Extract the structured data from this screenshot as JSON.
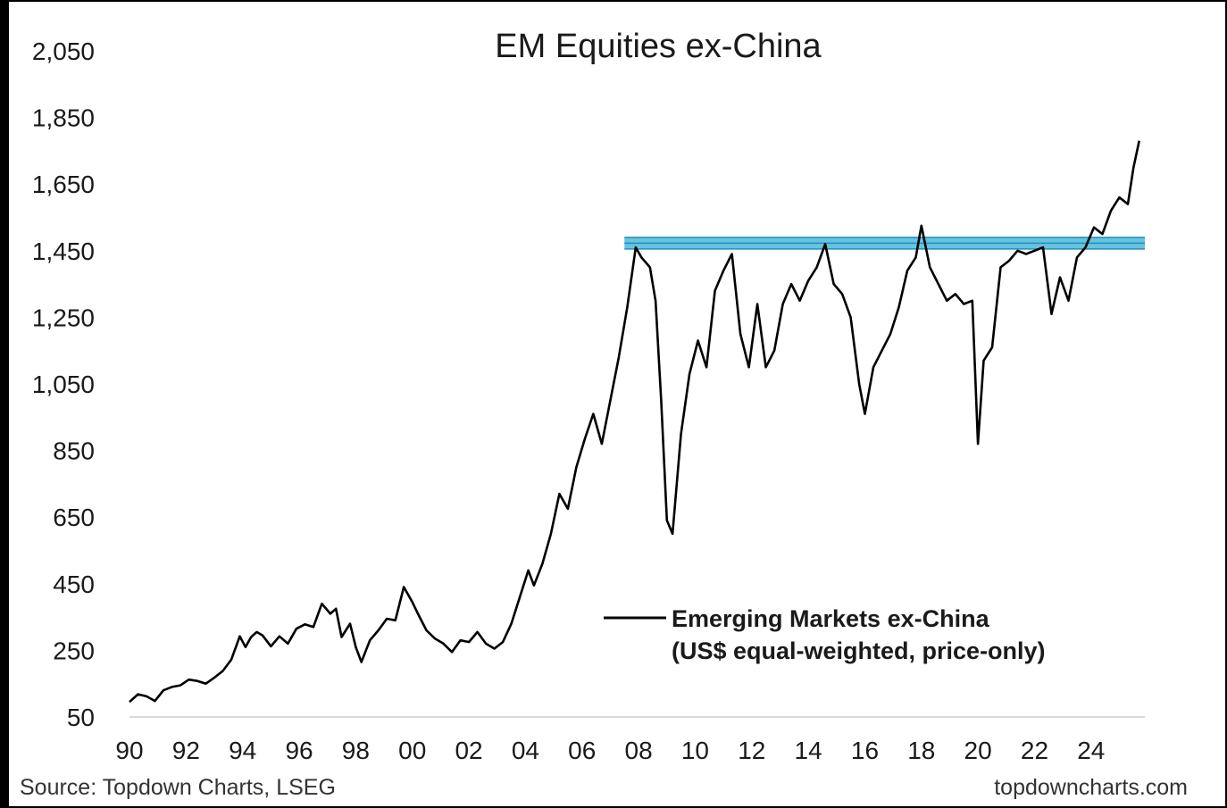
{
  "chart_data": {
    "type": "line",
    "title": "EM Equities ex-China",
    "xlabel": "",
    "ylabel": "",
    "xlim": [
      1990.0,
      2025.9
    ],
    "ylim": [
      50,
      2050
    ],
    "y_ticks": [
      2050,
      1850,
      1650,
      1450,
      1250,
      1050,
      850,
      650,
      450,
      250,
      50
    ],
    "y_tick_labels": [
      "2,050",
      "1,850",
      "1,650",
      "1,450",
      "1,250",
      "1,050",
      "850",
      "650",
      "450",
      "250",
      "50"
    ],
    "x_ticks": [
      1990,
      1992,
      1994,
      1996,
      1998,
      2000,
      2002,
      2004,
      2006,
      2008,
      2010,
      2012,
      2014,
      2016,
      2018,
      2020,
      2022,
      2024
    ],
    "x_tick_labels": [
      "90",
      "92",
      "94",
      "96",
      "98",
      "00",
      "02",
      "04",
      "06",
      "08",
      "10",
      "12",
      "14",
      "16",
      "18",
      "20",
      "22",
      "24"
    ],
    "grid": false,
    "legend": {
      "position": "bottom-right",
      "entries": [
        "Emerging Markets ex-China",
        "(US$ equal-weighted, price-only)"
      ]
    },
    "reference_band": {
      "y_min": 1455,
      "y_max": 1490,
      "x_start": 2007.5,
      "x_end": 2025.9,
      "color": "#4fb8d8"
    },
    "colors": {
      "line": "#000000",
      "band": "#4fb8d8",
      "band_edge": "#1e8fbf"
    },
    "series": [
      {
        "name": "Emerging Markets ex-China",
        "x": [
          1990.0,
          1990.3,
          1990.6,
          1990.9,
          1991.2,
          1991.5,
          1991.8,
          1992.1,
          1992.4,
          1992.7,
          1993.0,
          1993.3,
          1993.6,
          1993.9,
          1994.1,
          1994.3,
          1994.5,
          1994.7,
          1995.0,
          1995.3,
          1995.6,
          1995.9,
          1996.2,
          1996.5,
          1996.8,
          1997.1,
          1997.3,
          1997.5,
          1997.8,
          1998.0,
          1998.2,
          1998.5,
          1998.8,
          1999.1,
          1999.4,
          1999.7,
          2000.0,
          2000.2,
          2000.5,
          2000.8,
          2001.1,
          2001.4,
          2001.7,
          2002.0,
          2002.3,
          2002.6,
          2002.9,
          2003.2,
          2003.5,
          2003.8,
          2004.1,
          2004.3,
          2004.6,
          2004.9,
          2005.2,
          2005.5,
          2005.8,
          2006.1,
          2006.4,
          2006.7,
          2007.0,
          2007.3,
          2007.6,
          2007.9,
          2008.1,
          2008.4,
          2008.6,
          2008.8,
          2009.0,
          2009.2,
          2009.5,
          2009.8,
          2010.1,
          2010.4,
          2010.7,
          2011.0,
          2011.3,
          2011.6,
          2011.9,
          2012.2,
          2012.5,
          2012.8,
          2013.1,
          2013.4,
          2013.7,
          2014.0,
          2014.3,
          2014.6,
          2014.9,
          2015.2,
          2015.5,
          2015.8,
          2016.0,
          2016.3,
          2016.6,
          2016.9,
          2017.2,
          2017.5,
          2017.8,
          2018.0,
          2018.3,
          2018.6,
          2018.9,
          2019.2,
          2019.5,
          2019.8,
          2020.0,
          2020.2,
          2020.5,
          2020.8,
          2021.1,
          2021.4,
          2021.7,
          2022.0,
          2022.3,
          2022.6,
          2022.9,
          2023.2,
          2023.5,
          2023.8,
          2024.1,
          2024.4,
          2024.7,
          2025.0,
          2025.3,
          2025.5,
          2025.7
        ],
        "values": [
          95,
          118,
          112,
          98,
          130,
          140,
          145,
          162,
          158,
          150,
          168,
          188,
          222,
          292,
          260,
          290,
          305,
          295,
          262,
          292,
          270,
          315,
          328,
          320,
          390,
          360,
          375,
          290,
          330,
          260,
          215,
          280,
          310,
          345,
          340,
          440,
          395,
          360,
          310,
          285,
          270,
          245,
          280,
          275,
          305,
          270,
          255,
          275,
          330,
          410,
          490,
          445,
          510,
          600,
          720,
          675,
          800,
          885,
          960,
          870,
          1000,
          1130,
          1280,
          1460,
          1430,
          1400,
          1300,
          1000,
          640,
          600,
          900,
          1080,
          1180,
          1100,
          1330,
          1390,
          1440,
          1200,
          1100,
          1290,
          1100,
          1150,
          1290,
          1350,
          1300,
          1360,
          1400,
          1470,
          1350,
          1320,
          1250,
          1050,
          960,
          1100,
          1150,
          1200,
          1280,
          1390,
          1430,
          1525,
          1400,
          1350,
          1300,
          1320,
          1290,
          1300,
          870,
          1120,
          1160,
          1400,
          1420,
          1450,
          1440,
          1450,
          1460,
          1260,
          1370,
          1300,
          1430,
          1460,
          1520,
          1500,
          1570,
          1610,
          1590,
          1700,
          1780
        ]
      }
    ]
  },
  "footer": {
    "source": "Source: Topdown Charts, LSEG",
    "site": "topdowncharts.com"
  }
}
